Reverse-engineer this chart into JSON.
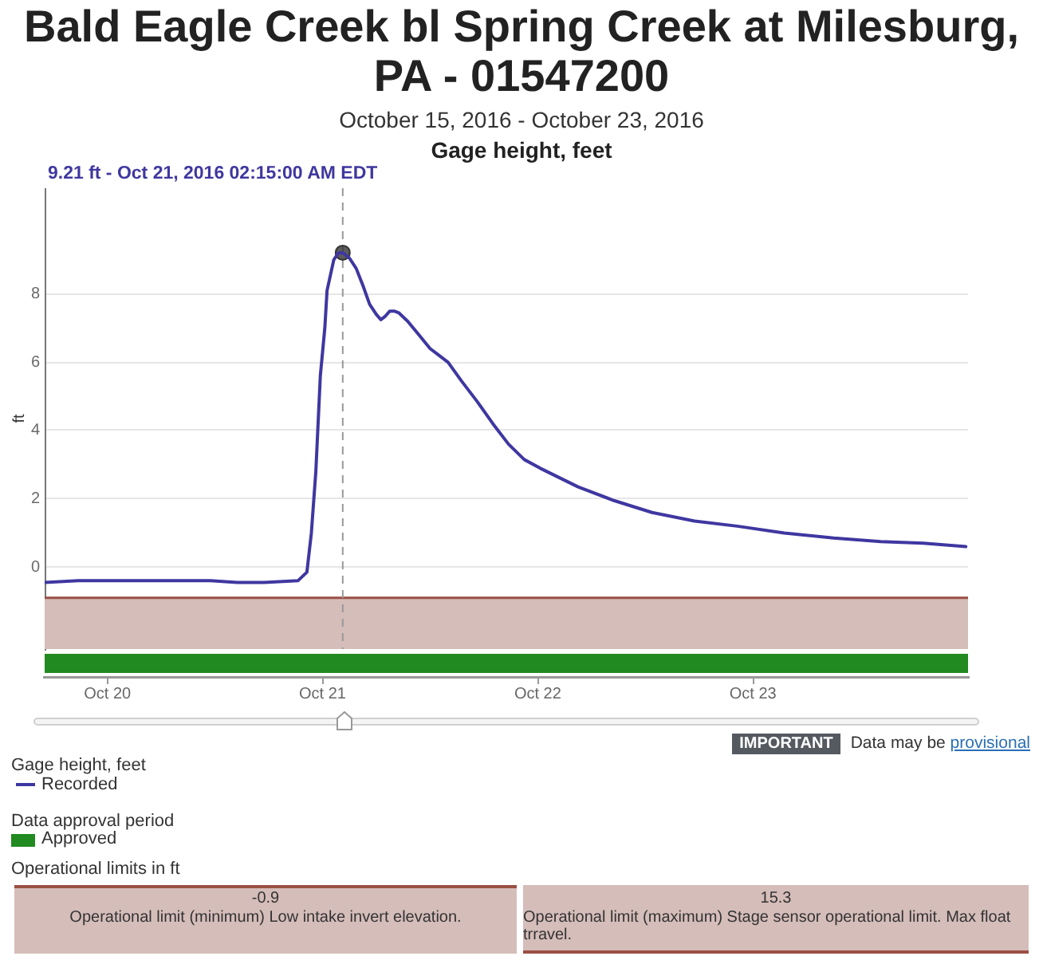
{
  "chart_data": {
    "type": "line",
    "title": "Bald Eagle Creek bl Spring Creek at Milesburg, PA - 01547200",
    "subtitle": "October 15, 2016 - October 23, 2016",
    "ylabel": "ft",
    "legend_title": "Gage height, feet",
    "annotations": [
      "Gage height, feet",
      "9.21 ft - Oct 21, 2016 02:15:00 AM EDT",
      "Data approval period",
      "Approved",
      "Operational limits in ft",
      "-0.9",
      "Operational limit (minimum) Low intake invert elevation.",
      "15.3",
      "Operational limit (maximum) Stage sensor operational limit. Max float trravel.",
      "IMPORTANT",
      "Data may be provisional"
    ],
    "series": [
      {
        "name": "Recorded",
        "color": "#3f37a0",
        "x": [
          "2016-10-19T17:00",
          "2016-10-19T20:45",
          "2016-10-19T23:45",
          "2016-10-20T05:45",
          "2016-10-20T11:30",
          "2016-10-20T14:30",
          "2016-10-20T17:30",
          "2016-10-20T21:15",
          "2016-10-20T22:15",
          "2016-10-20T22:45",
          "2016-10-20T23:15",
          "2016-10-20T23:45",
          "2016-10-21T00:15",
          "2016-10-21T00:30",
          "2016-10-21T01:15",
          "2016-10-21T01:45",
          "2016-10-21T02:15",
          "2016-10-21T03:00",
          "2016-10-21T03:45",
          "2016-10-21T04:30",
          "2016-10-21T05:15",
          "2016-10-21T06:00",
          "2016-10-21T06:30",
          "2016-10-21T07:00",
          "2016-10-21T07:30",
          "2016-10-21T08:00",
          "2016-10-21T08:30",
          "2016-10-21T09:30",
          "2016-10-21T10:45",
          "2016-10-21T12:00",
          "2016-10-21T12:45",
          "2016-10-21T14:00",
          "2016-10-21T15:30",
          "2016-10-21T17:15",
          "2016-10-21T19:00",
          "2016-10-21T20:45",
          "2016-10-21T22:30",
          "2016-10-22T00:15",
          "2016-10-22T04:30",
          "2016-10-22T08:30",
          "2016-10-22T12:45",
          "2016-10-22T17:30",
          "2016-10-22T22:15",
          "2016-10-23T03:30",
          "2016-10-23T09:00",
          "2016-10-23T14:15",
          "2016-10-23T19:00",
          "2016-10-23T23:45"
        ],
        "values": [
          -0.45,
          -0.4,
          -0.4,
          -0.4,
          -0.4,
          -0.45,
          -0.45,
          -0.4,
          -0.15,
          1.0,
          2.8,
          5.6,
          7.0,
          8.1,
          9.0,
          9.2,
          9.21,
          9.05,
          8.75,
          8.25,
          7.7,
          7.4,
          7.25,
          7.35,
          7.5,
          7.5,
          7.45,
          7.2,
          6.8,
          6.4,
          6.25,
          6.0,
          5.45,
          4.85,
          4.2,
          3.6,
          3.15,
          2.9,
          2.35,
          1.95,
          1.6,
          1.35,
          1.2,
          1.0,
          0.85,
          0.75,
          0.7,
          0.6
        ]
      },
      {
        "type": "scatter",
        "color": "#333333",
        "x": [
          "2016-10-21T02:15"
        ],
        "values": [
          9.21
        ]
      }
    ],
    "xlim": [
      "2016-10-19T17:00",
      "2016-10-24T00:00"
    ],
    "xticks": [
      {
        "value": "2016-10-20",
        "label": "Oct 20"
      },
      {
        "value": "2016-10-21",
        "label": "Oct 21"
      },
      {
        "value": "2016-10-22",
        "label": "Oct 22"
      },
      {
        "value": "2016-10-23",
        "label": "Oct 23"
      }
    ],
    "ylim": [
      -2.4,
      11.1
    ],
    "yticks": [
      0,
      2,
      4,
      6,
      8
    ],
    "grid": "y",
    "legend": "bottom",
    "line_style": "solid",
    "bands": [
      {
        "axis": "y",
        "from": -2.4,
        "to": -0.9,
        "color": "#d5bdb9"
      }
    ],
    "ref_lines": [
      {
        "axis": "y",
        "value": -0.9,
        "color": "#9b4f44"
      },
      {
        "axis": "x",
        "value": "2016-10-21T02:15",
        "color": "#999999",
        "line_style": "dashed"
      }
    ]
  }
}
